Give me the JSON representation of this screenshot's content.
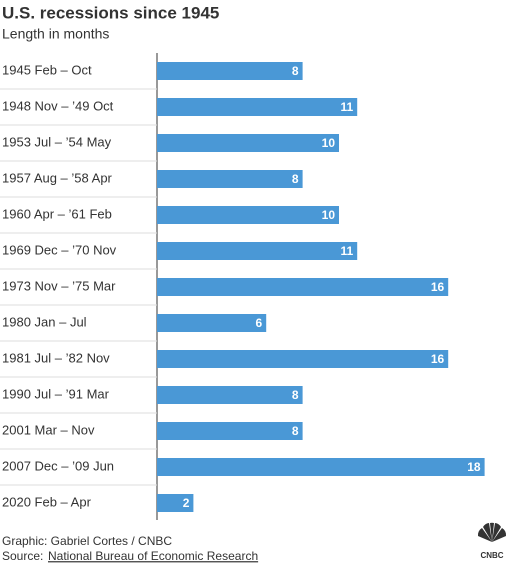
{
  "chart_data": {
    "type": "barh",
    "title": "U.S. recessions since 1945",
    "subtitle": "Length in months",
    "categories": [
      "1945 Feb – Oct",
      "1948 Nov – ’49 Oct",
      "1953 Jul – ’54 May",
      "1957 Aug – ’58 Apr",
      "1960 Apr – ’61 Feb",
      "1969 Dec – ’70 Nov",
      "1973 Nov – ’75 Mar",
      "1980 Jan – Jul",
      "1981 Jul – ’82 Nov",
      "1990 Jul – ’91 Mar",
      "2001 Mar – Nov",
      "2007 Dec – ’09 Jun",
      "2020 Feb – Apr"
    ],
    "values": [
      8,
      11,
      10,
      8,
      10,
      11,
      16,
      6,
      16,
      8,
      8,
      18,
      2
    ],
    "color": "#4a98d6",
    "xlim": [
      0,
      20
    ],
    "credit": "Graphic: Gabriel Cortes / CNBC",
    "source_label": "Source:",
    "source_link": "National Bureau of Economic Research",
    "logo": "CNBC"
  }
}
